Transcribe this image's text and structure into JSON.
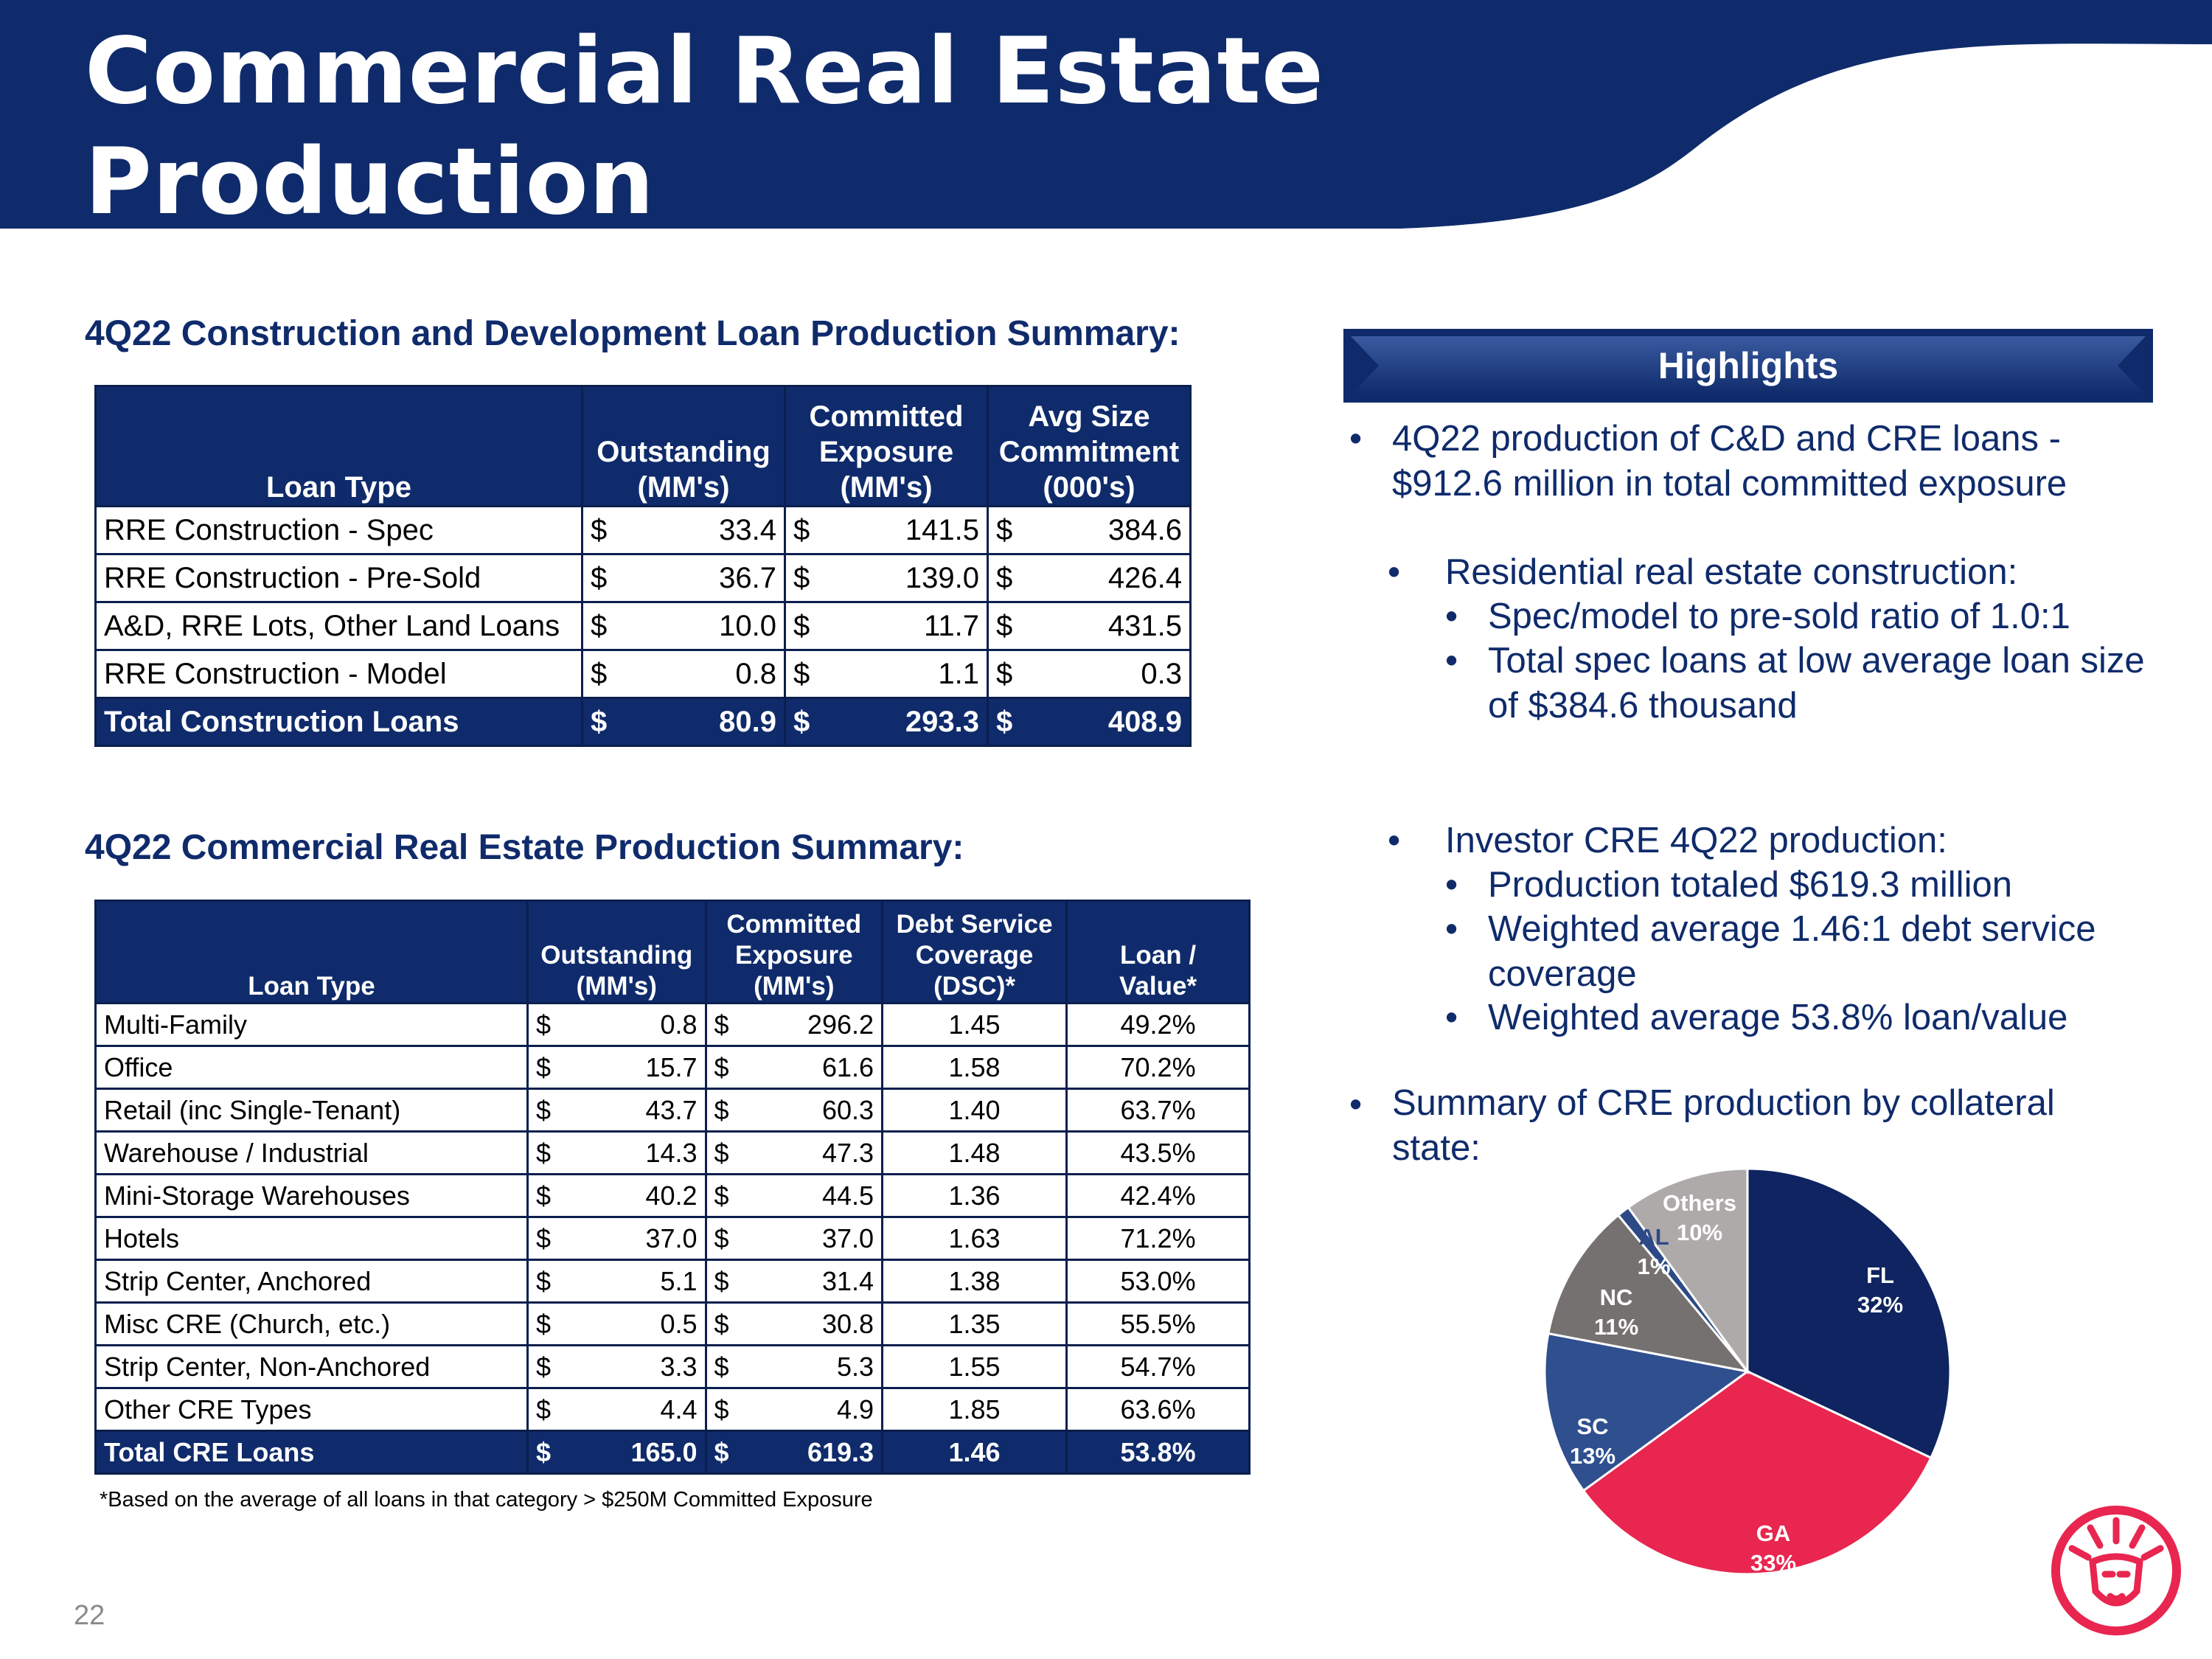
{
  "title_line1": "Commercial Real Estate",
  "title_line2": "Production",
  "cd_section": {
    "title": "4Q22 Construction and Development Loan Production Summary:",
    "headers": [
      "Loan Type",
      "Outstanding\n(MM's)",
      "Committed\nExposure\n(MM's)",
      "Avg Size\nCommitment\n(000's)"
    ],
    "rows": [
      {
        "type": "RRE Construction - Spec",
        "outstanding": "33.4",
        "committed": "141.5",
        "avg": "384.6"
      },
      {
        "type": "RRE Construction - Pre-Sold",
        "outstanding": "36.7",
        "committed": "139.0",
        "avg": "426.4"
      },
      {
        "type": "A&D, RRE Lots, Other Land Loans",
        "outstanding": "10.0",
        "committed": "11.7",
        "avg": "431.5"
      },
      {
        "type": "RRE Construction - Model",
        "outstanding": "0.8",
        "committed": "1.1",
        "avg": "0.3"
      }
    ],
    "total": {
      "type": "Total Construction Loans",
      "outstanding": "80.9",
      "committed": "293.3",
      "avg": "408.9"
    },
    "currency": "$"
  },
  "cre_section": {
    "title": "4Q22 Commercial Real Estate Production Summary:",
    "headers": [
      "Loan Type",
      "Outstanding\n(MM's)",
      "Committed\nExposure\n(MM's)",
      "Debt Service\nCoverage\n(DSC)*",
      "Loan /\nValue*"
    ],
    "rows": [
      {
        "type": "Multi-Family",
        "outstanding": "0.8",
        "committed": "296.2",
        "dsc": "1.45",
        "ltv": "49.2%"
      },
      {
        "type": "Office",
        "outstanding": "15.7",
        "committed": "61.6",
        "dsc": "1.58",
        "ltv": "70.2%"
      },
      {
        "type": "Retail (inc Single-Tenant)",
        "outstanding": "43.7",
        "committed": "60.3",
        "dsc": "1.40",
        "ltv": "63.7%"
      },
      {
        "type": "Warehouse / Industrial",
        "outstanding": "14.3",
        "committed": "47.3",
        "dsc": "1.48",
        "ltv": "43.5%"
      },
      {
        "type": "Mini-Storage Warehouses",
        "outstanding": "40.2",
        "committed": "44.5",
        "dsc": "1.36",
        "ltv": "42.4%"
      },
      {
        "type": "Hotels",
        "outstanding": "37.0",
        "committed": "37.0",
        "dsc": "1.63",
        "ltv": "71.2%"
      },
      {
        "type": "Strip Center, Anchored",
        "outstanding": "5.1",
        "committed": "31.4",
        "dsc": "1.38",
        "ltv": "53.0%"
      },
      {
        "type": "Misc CRE (Church, etc.)",
        "outstanding": "0.5",
        "committed": "30.8",
        "dsc": "1.35",
        "ltv": "55.5%"
      },
      {
        "type": "Strip Center, Non-Anchored",
        "outstanding": "3.3",
        "committed": "5.3",
        "dsc": "1.55",
        "ltv": "54.7%"
      },
      {
        "type": "Other CRE Types",
        "outstanding": "4.4",
        "committed": "4.9",
        "dsc": "1.85",
        "ltv": "63.6%"
      }
    ],
    "total": {
      "type": "Total CRE Loans",
      "outstanding": "165.0",
      "committed": "619.3",
      "dsc": "1.46",
      "ltv": "53.8%"
    },
    "currency": "$",
    "footnote": "*Based on the average of all loans in that category > $250M Committed Exposure"
  },
  "highlights": {
    "label": "Highlights",
    "b1_line1": "4Q22 production of C&D and CRE loans -",
    "b1_line2": "$912.6 million in total committed exposure",
    "b2": "Residential real estate construction:",
    "b2a": "Spec/model to pre-sold ratio of 1.0:1",
    "b2b_line1": "Total spec loans at low average loan size",
    "b2b_line2": "of $384.6 thousand",
    "b3": "Investor CRE 4Q22 production:",
    "b3a": "Production totaled $619.3 million",
    "b3b_line1": "Weighted average 1.46:1 debt service",
    "b3b_line2": "coverage",
    "b3c": "Weighted average 53.8% loan/value",
    "b4_line1": "Summary of CRE production by collateral",
    "b4_line2": "state:"
  },
  "chart_data": {
    "type": "pie",
    "slices": [
      {
        "label": "FL",
        "pct": 32,
        "color": "#0f2460"
      },
      {
        "label": "GA",
        "pct": 33,
        "color": "#e8264f"
      },
      {
        "label": "SC",
        "pct": 13,
        "color": "#2f4f8f"
      },
      {
        "label": "NC",
        "pct": 11,
        "color": "#757170"
      },
      {
        "label": "AL",
        "pct": 1,
        "color": "#2e4a86"
      },
      {
        "label": "Others",
        "pct": 10,
        "color": "#aeaaaa"
      }
    ]
  },
  "page_number": "22",
  "colors": {
    "navy": "#0f2b6b",
    "red": "#e8264f"
  }
}
